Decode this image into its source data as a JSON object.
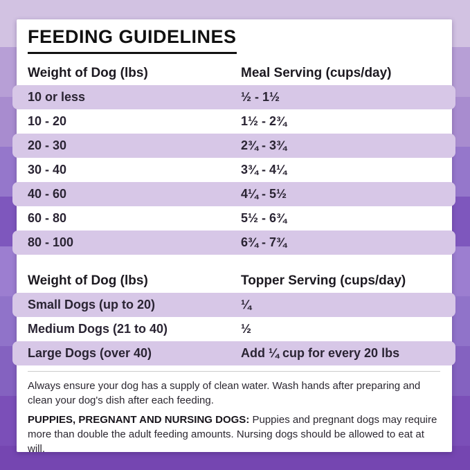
{
  "title": "FEEDING GUIDELINES",
  "meal_table": {
    "col1_header": "Weight of Dog (lbs)",
    "col2_header": "Meal Serving (cups/day)",
    "rows": [
      {
        "weight": "10 or less",
        "serving": "½ - 1½"
      },
      {
        "weight": "10 - 20",
        "serving": "1½ - 2¾"
      },
      {
        "weight": "20 - 30",
        "serving": "2¾ - 3¾"
      },
      {
        "weight": "30 - 40",
        "serving": "3¾ - 4¼"
      },
      {
        "weight": "40 - 60",
        "serving": "4¼ - 5½"
      },
      {
        "weight": "60 - 80",
        "serving": "5½ - 6¾"
      },
      {
        "weight": "80 - 100",
        "serving": "6¾ - 7¾"
      }
    ]
  },
  "topper_table": {
    "col1_header": "Weight of Dog (lbs)",
    "col2_header": "Topper Serving (cups/day)",
    "rows": [
      {
        "weight": "Small Dogs (up to 20)",
        "serving": "¼"
      },
      {
        "weight": "Medium Dogs (21 to 40)",
        "serving": "½"
      },
      {
        "weight": "Large Dogs (over 40)",
        "serving": "Add ¼ cup for every 20 lbs"
      }
    ]
  },
  "notes": {
    "water_note": "Always ensure your dog has a supply of clean water. Wash hands after preparing and clean your dog's dish after each feeding.",
    "puppies_label": "PUPPIES, PREGNANT AND NURSING DOGS:",
    "puppies_note": "Puppies and pregnant dogs may require more than double the adult feeding amounts. Nursing dogs should be allowed to eat at will."
  },
  "colors": {
    "card_bg": "#ffffff",
    "row_highlight": "#d7c7e7",
    "text": "#26222c",
    "background_bands": [
      "#d2c2e2",
      "#b79fd6",
      "#a88ccf",
      "#9577cb",
      "#7e57bd",
      "#9c7ed0",
      "#9073c9",
      "#8462c0",
      "#7b4fb8",
      "#7546b1"
    ]
  }
}
